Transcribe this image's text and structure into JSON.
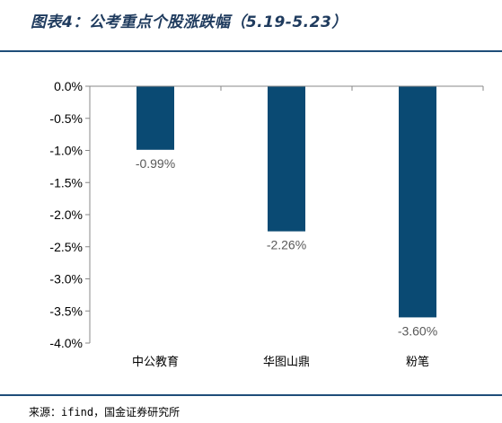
{
  "header": {
    "title": "图表4：公考重点个股涨跌幅（5.19-5.23）"
  },
  "footer": {
    "source": "来源：ifind，国金证券研究所"
  },
  "colors": {
    "bar": "#0a4a73",
    "rule": "#1f4e79",
    "label": "#595959"
  },
  "chart_data": {
    "type": "bar",
    "title": "图表4：公考重点个股涨跌幅（5.19-5.23）",
    "categories": [
      "中公教育",
      "华图山鼎",
      "粉笔"
    ],
    "values": [
      -0.99,
      -2.26,
      -3.6
    ],
    "value_labels": [
      "-0.99%",
      "-2.26%",
      "-3.60%"
    ],
    "ylim": [
      -4.0,
      0.0
    ],
    "yticks": [
      0.0,
      -0.5,
      -1.0,
      -1.5,
      -2.0,
      -2.5,
      -3.0,
      -3.5,
      -4.0
    ],
    "ytick_labels": [
      "0.0%",
      "-0.5%",
      "-1.0%",
      "-1.5%",
      "-2.0%",
      "-2.5%",
      "-3.0%",
      "-3.5%",
      "-4.0%"
    ],
    "grid": false,
    "xlabel": "",
    "ylabel": ""
  }
}
